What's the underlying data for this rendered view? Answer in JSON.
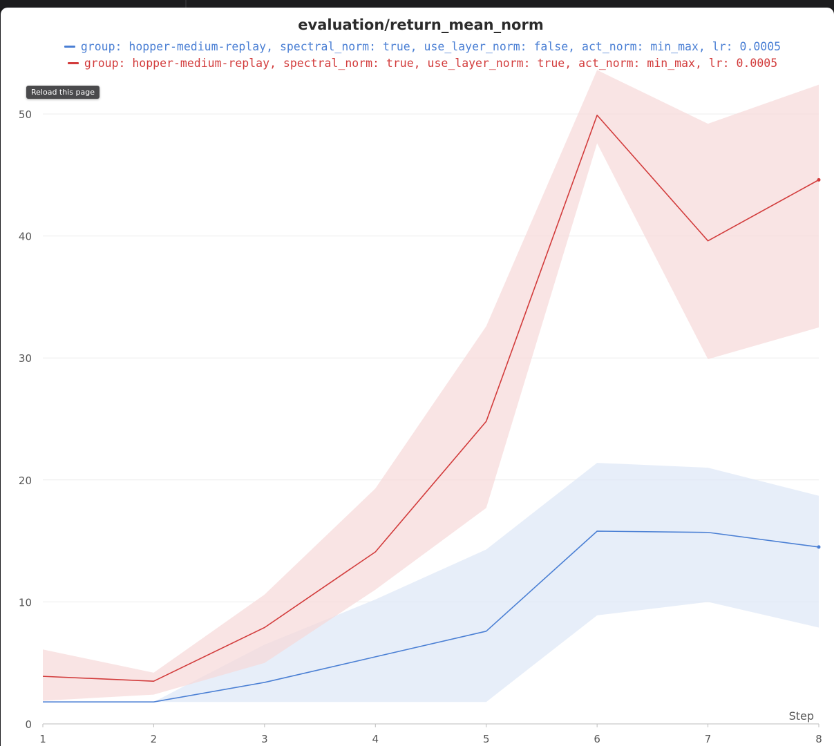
{
  "window": {
    "tooltip": "Reload this page"
  },
  "chart_data": {
    "type": "line",
    "title": "evaluation/return_mean_norm",
    "xlabel": "Step",
    "ylabel": "",
    "x": [
      1,
      2,
      3,
      4,
      5,
      6,
      7,
      8
    ],
    "xlim": [
      1,
      8
    ],
    "ylim": [
      0,
      52
    ],
    "yticks": [
      0,
      10,
      20,
      30,
      40,
      50
    ],
    "xticks": [
      1,
      2,
      3,
      4,
      5,
      6,
      7,
      8
    ],
    "grid": true,
    "legend_position": "top-center",
    "series": [
      {
        "name": "group: hopper-medium-replay, spectral_norm: true, use_layer_norm: false, act_norm: min_max, lr: 0.0005",
        "color": "#4a7fd4",
        "band_color": "#dde7f7",
        "values": [
          1.8,
          1.8,
          3.4,
          5.5,
          7.6,
          15.8,
          15.7,
          14.5
        ],
        "upper": [
          1.8,
          1.8,
          6.5,
          10.2,
          14.3,
          21.4,
          21.0,
          18.7
        ],
        "lower": [
          1.8,
          1.8,
          1.8,
          1.8,
          1.8,
          8.9,
          10.0,
          7.9
        ]
      },
      {
        "name": "group: hopper-medium-replay, spectral_norm: true, use_layer_norm: true, act_norm: min_max, lr: 0.0005",
        "color": "#d23b3b",
        "band_color": "#f6d8d8",
        "values": [
          3.9,
          3.5,
          7.9,
          14.1,
          24.8,
          49.9,
          39.6,
          44.6
        ],
        "upper": [
          6.1,
          4.2,
          10.6,
          19.3,
          32.6,
          53.6,
          49.2,
          52.4
        ],
        "lower": [
          1.9,
          2.4,
          5.0,
          11.0,
          17.7,
          47.6,
          29.9,
          32.5
        ]
      }
    ]
  }
}
